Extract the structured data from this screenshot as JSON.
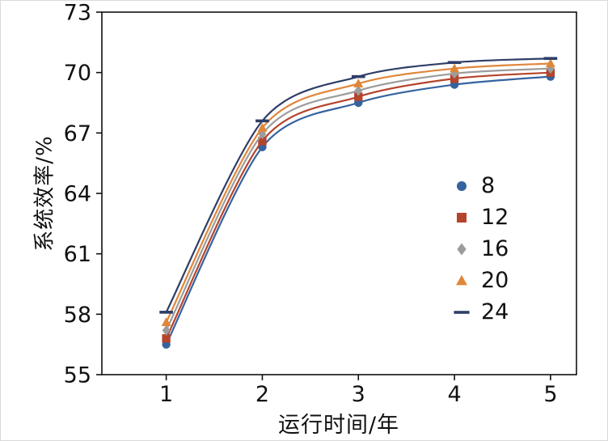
{
  "chart_data": {
    "type": "line",
    "title": "",
    "xlabel": "运行时间/年",
    "ylabel": "系统效率/%",
    "x": [
      1,
      2,
      3,
      4,
      5
    ],
    "xticks": [
      1,
      2,
      3,
      4,
      5
    ],
    "yticks": [
      55,
      58,
      61,
      64,
      67,
      70,
      73
    ],
    "xlim": [
      0.33,
      5.27
    ],
    "ylim": [
      55,
      73
    ],
    "grid": false,
    "legend_position": "inside-right",
    "axis_color": "#111111",
    "series": [
      {
        "name": "8",
        "marker": "circle",
        "color": "#35639f",
        "values": [
          56.5,
          66.3,
          68.5,
          69.4,
          69.8
        ]
      },
      {
        "name": "12",
        "marker": "square",
        "color": "#b5442c",
        "values": [
          56.8,
          66.6,
          68.8,
          69.7,
          70.0
        ]
      },
      {
        "name": "16",
        "marker": "diamond",
        "color": "#9c9c9c",
        "values": [
          57.2,
          66.95,
          69.1,
          69.95,
          70.2
        ]
      },
      {
        "name": "20",
        "marker": "triangle",
        "color": "#e0863a",
        "values": [
          57.6,
          67.25,
          69.45,
          70.2,
          70.45
        ]
      },
      {
        "name": "24",
        "marker": "dash",
        "color": "#2f3e68",
        "values": [
          58.1,
          67.6,
          69.8,
          70.5,
          70.7
        ]
      }
    ]
  }
}
